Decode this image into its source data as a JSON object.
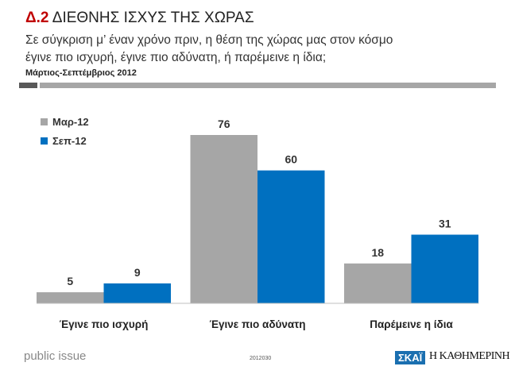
{
  "header": {
    "number": "Δ.2",
    "title": "ΔΙΕΘΝΗΣ ΙΣΧΥΣ ΤΗΣ ΧΩΡΑΣ",
    "subtitle_line1": "Σε σύγκριση μ’ έναν χρόνο πριν, η θέση της χώρας μας στον κόσμο",
    "subtitle_line2": "έγινε πιο ισχυρή, έγινε πιο αδύνατη, ή παρέμεινε η ίδια;",
    "period": "Μάρτιος-Σεπτέμβριος 2012"
  },
  "chart_data": {
    "type": "bar",
    "categories": [
      "Έγινε πιο ισχυρή",
      "Έγινε πιο αδύνατη",
      "Παρέμεινε η ίδια"
    ],
    "series": [
      {
        "name": "Μαρ-12",
        "values": [
          5,
          76,
          18
        ],
        "color": "#a6a6a6"
      },
      {
        "name": "Σεπ-12",
        "values": [
          9,
          60,
          31
        ],
        "color": "#0070c0"
      }
    ],
    "ylim": [
      0,
      80
    ],
    "grid": false,
    "legend": "top-left",
    "data_labels": true
  },
  "footer": {
    "brand": "public issue",
    "code": "2012030",
    "logo1": "ΣΚΑΪ",
    "logo2": "Η ΚΑΘΗΜΕΡΙΝΗ"
  }
}
